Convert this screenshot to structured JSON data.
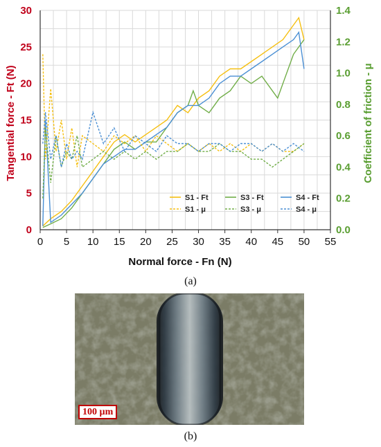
{
  "caption_a": "(a)",
  "caption_b": "(b)",
  "scale_bar_label": "100 µm",
  "colors": {
    "left_axis": "#c0001a",
    "right_axis": "#5a9e32",
    "S1": "#f5bf10",
    "S3": "#70ad47",
    "S4": "#4a8fd4"
  },
  "chart_data": {
    "type": "line",
    "xlabel": "Normal force - Fn (N)",
    "ylabel_left": "Tangential force - Ft (N)",
    "ylabel_right": "Coefficient of friction - μ",
    "xlim": [
      0,
      55
    ],
    "ylim_left": [
      0,
      30
    ],
    "ylim_right": [
      0,
      1.4
    ],
    "x_ticks": [
      "0",
      "5",
      "10",
      "15",
      "20",
      "25",
      "30",
      "35",
      "40",
      "45",
      "50",
      "55"
    ],
    "y_ticks_left": [
      "0",
      "5",
      "10",
      "15",
      "20",
      "25",
      "30"
    ],
    "y_ticks_right": [
      "0.0",
      "0.2",
      "0.4",
      "0.6",
      "0.8",
      "1.0",
      "1.2",
      "1.4"
    ],
    "grid": true,
    "legend_position": "bottom-right",
    "series": [
      {
        "name": "S1 - Ft",
        "axis": "left",
        "style": "solid",
        "color": "#f5bf10",
        "x": [
          0.5,
          2,
          4,
          6,
          8,
          10,
          12,
          14,
          16,
          18,
          20,
          22,
          24,
          26,
          28,
          30,
          32,
          34,
          36,
          38,
          40,
          42,
          44,
          46,
          48,
          49,
          50
        ],
        "y": [
          0.5,
          1.5,
          2.5,
          4,
          6,
          8,
          10,
          12,
          13,
          12,
          13,
          14,
          15,
          17,
          16,
          18,
          19,
          21,
          22,
          22,
          23,
          24,
          25,
          26,
          28,
          29,
          26
        ]
      },
      {
        "name": "S3 - Ft",
        "axis": "left",
        "style": "solid",
        "color": "#70ad47",
        "x": [
          0.5,
          2,
          4,
          6,
          8,
          10,
          12,
          14,
          16,
          18,
          20,
          22,
          24,
          26,
          28,
          29,
          30,
          32,
          34,
          36,
          38,
          40,
          42,
          44,
          45,
          46,
          48,
          50
        ],
        "y": [
          0.3,
          0.8,
          1.5,
          3,
          5,
          7,
          9,
          11,
          12,
          11,
          12,
          12,
          14,
          16,
          17,
          19,
          17,
          16,
          18,
          19,
          21,
          20,
          21,
          19,
          18,
          20,
          24,
          26
        ]
      },
      {
        "name": "S4 - Ft",
        "axis": "left",
        "style": "solid",
        "color": "#4a8fd4",
        "x": [
          0.5,
          1,
          2,
          4,
          6,
          8,
          10,
          12,
          14,
          16,
          18,
          20,
          22,
          24,
          26,
          28,
          30,
          32,
          34,
          36,
          38,
          40,
          42,
          44,
          46,
          48,
          49,
          50
        ],
        "y": [
          0.5,
          15,
          1,
          2,
          3.5,
          5,
          7,
          9,
          10,
          11,
          11,
          12,
          13,
          14,
          16,
          17,
          17,
          18,
          20,
          21,
          21,
          22,
          23,
          24,
          25,
          26,
          27,
          22
        ]
      },
      {
        "name": "S1 - μ",
        "axis": "right",
        "style": "dashed",
        "color": "#f5bf10",
        "x": [
          0.5,
          1,
          2,
          3,
          4,
          5,
          6,
          7,
          8,
          10,
          12,
          14,
          16,
          18,
          20,
          22,
          24,
          26,
          28,
          30,
          32,
          34,
          36,
          38,
          40,
          42,
          44,
          46,
          48,
          50
        ],
        "y": [
          1.12,
          0.45,
          0.9,
          0.5,
          0.7,
          0.45,
          0.65,
          0.4,
          0.6,
          0.55,
          0.5,
          0.6,
          0.55,
          0.6,
          0.5,
          0.6,
          0.55,
          0.5,
          0.55,
          0.5,
          0.55,
          0.5,
          0.55,
          0.5,
          0.55,
          0.5,
          0.55,
          0.5,
          0.5,
          0.55
        ]
      },
      {
        "name": "S3 - μ",
        "axis": "right",
        "style": "dashed",
        "color": "#70ad47",
        "x": [
          0.5,
          1,
          2,
          3,
          4,
          5,
          6,
          7,
          8,
          10,
          12,
          14,
          16,
          18,
          20,
          22,
          24,
          26,
          28,
          30,
          32,
          34,
          36,
          38,
          40,
          42,
          44,
          46,
          48,
          50
        ],
        "y": [
          0.2,
          0.65,
          0.3,
          0.6,
          0.4,
          0.5,
          0.45,
          0.6,
          0.4,
          0.45,
          0.5,
          0.45,
          0.5,
          0.45,
          0.5,
          0.45,
          0.5,
          0.5,
          0.55,
          0.5,
          0.5,
          0.55,
          0.5,
          0.5,
          0.45,
          0.45,
          0.4,
          0.45,
          0.5,
          0.55
        ]
      },
      {
        "name": "S4 - μ",
        "axis": "right",
        "style": "dashed",
        "color": "#4a8fd4",
        "x": [
          0.5,
          1,
          2,
          3,
          4,
          5,
          6,
          7,
          8,
          10,
          12,
          14,
          16,
          18,
          20,
          22,
          24,
          26,
          28,
          30,
          32,
          34,
          36,
          38,
          40,
          42,
          44,
          46,
          48,
          50
        ],
        "y": [
          0.55,
          0.75,
          0.45,
          0.6,
          0.4,
          0.55,
          0.45,
          0.5,
          0.45,
          0.75,
          0.55,
          0.65,
          0.5,
          0.6,
          0.55,
          0.5,
          0.6,
          0.55,
          0.55,
          0.5,
          0.55,
          0.55,
          0.5,
          0.55,
          0.55,
          0.5,
          0.55,
          0.5,
          0.55,
          0.5
        ]
      }
    ]
  }
}
